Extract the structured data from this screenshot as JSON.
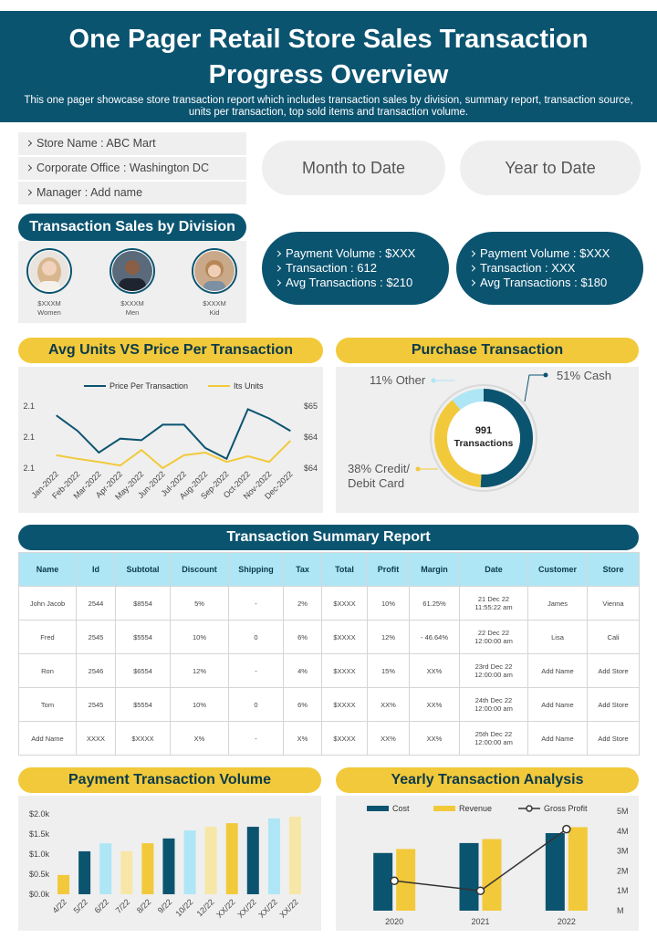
{
  "header": {
    "title": "One Pager Retail Store Sales Transaction Progress Overview",
    "subtitle": "This one pager showcase store transaction report which includes transaction sales by division, summary report, transaction source, units per transaction, top sold items and transaction volume."
  },
  "store_info": [
    "Store Name : ABC Mart",
    "Corporate  Office : Washington DC",
    "Manager : Add name"
  ],
  "periods": [
    "Month to Date",
    "Year to Date"
  ],
  "division": {
    "title": "Transaction Sales by Division",
    "people": [
      {
        "amount": "$XXXM",
        "label": "Women"
      },
      {
        "amount": "$XXXM",
        "label": "Men"
      },
      {
        "amount": "$XXXM",
        "label": "Kid"
      }
    ]
  },
  "period_stats": [
    [
      "Payment Volume : $XXX",
      "Transaction  : 612",
      "Avg Transactions  : $210"
    ],
    [
      "Payment Volume : $XXX",
      "Transaction  : XXX",
      "Avg Transactions  : $180"
    ]
  ],
  "table": {
    "title": "Transaction Summary Report",
    "columns": [
      "Name",
      "Id",
      "Subtotal",
      "Discount",
      "Shipping",
      "Tax",
      "Total",
      "Profit",
      "Margin",
      "Date",
      "Customer",
      "Store"
    ],
    "rows": [
      [
        "John Jacob",
        "2544",
        "$8554",
        "5%",
        "-",
        "2%",
        "$XXXX",
        "10%",
        "61.25%",
        "21 Dec 22\n11:55:22  am",
        "James",
        "Vienna"
      ],
      [
        "Fred",
        "2545",
        "$5554",
        "10%",
        "0",
        "6%",
        "$XXXX",
        "12%",
        "- 46.64%",
        "22 Dec 22\n12:00:00  am",
        "Lisa",
        "Cali"
      ],
      [
        "Ron",
        "2546",
        "$6554",
        "12%",
        "-",
        "4%",
        "$XXXX",
        "15%",
        "XX%",
        "23rd Dec 22\n12:00:00  am",
        "Add Name",
        "Add Store"
      ],
      [
        "Tom",
        "2545",
        "$5554",
        "10%",
        "0",
        "6%",
        "$XXXX",
        "XX%",
        "XX%",
        "24th Dec 22\n12:00:00  am",
        "Add Name",
        "Add Store"
      ],
      [
        "Add Name",
        "XXXX",
        "$XXXX",
        "X%",
        "-",
        "X%",
        "$XXXX",
        "XX%",
        "XX%",
        "25th Dec 22\n12:00:00  am",
        "Add Name",
        "Add Store"
      ]
    ]
  },
  "chart_data": [
    {
      "type": "line",
      "title": "Avg Units VS Price Per Transaction",
      "categories": [
        "Jan-2022",
        "Feb-2022",
        "Mar-2022",
        "Apr-2022",
        "May-2022",
        "Jun-2022",
        "Jul-2022",
        "Aug-2022",
        "Sep-2022",
        "Oct-2022",
        "Nov-2022",
        "Dec-2022"
      ],
      "series": [
        {
          "name": "Price Per Transaction",
          "color": "#0b5470",
          "values": [
            2.114,
            2.104,
            2.09,
            2.099,
            2.098,
            2.108,
            2.108,
            2.093,
            2.086,
            2.118,
            2.112,
            2.104
          ]
        },
        {
          "name": "Its Units",
          "color": "#f2c93a",
          "axis": "y2",
          "values": [
            63.85,
            63.78,
            63.72,
            63.65,
            63.95,
            63.6,
            63.85,
            63.9,
            63.72,
            63.83,
            63.72,
            64.13
          ]
        }
      ],
      "ylim": [
        2.08,
        2.12
      ],
      "yticks": [
        {
          "value": 2.08,
          "label": "2.1"
        },
        2.1,
        {
          "value": 2.12,
          "label": "2.1"
        }
      ],
      "y2lim": [
        63.6,
        64.8
      ],
      "y2ticks": [
        {
          "value": 63.6,
          "label": "$64"
        },
        {
          "value": 64.2,
          "label": "$64"
        },
        {
          "value": 64.8,
          "label": "$65"
        }
      ],
      "legend": "top"
    },
    {
      "type": "pie",
      "title": "Purchase Transaction",
      "categories": [
        "Cash",
        "Credit/\nDebit Card",
        "Other"
      ],
      "values": [
        51,
        38,
        11
      ],
      "value_labels": [
        "51%",
        "38%",
        "11%"
      ],
      "colors": [
        "#0b5470",
        "#f2c93a",
        "#aee6f5"
      ],
      "total": 991,
      "total_label": "Transactions"
    },
    {
      "type": "bar",
      "title": "Payment Transaction Volume",
      "categories": [
        "4/22",
        "5/22",
        "6/22",
        "7/22",
        "8/22",
        "9/22",
        "10/22",
        "12/22",
        "XX/22",
        "XX/22",
        "XX/22",
        "XX/22"
      ],
      "values": [
        480,
        1070,
        1270,
        1070,
        1270,
        1390,
        1590,
        1680,
        1770,
        1680,
        1890,
        1930
      ],
      "colors": [
        "#f2c93a",
        "#0b5470",
        "#aee6f5",
        "#f7e7a6",
        "#f2c93a",
        "#0b5470",
        "#aee6f5",
        "#f7e7a6",
        "#f2c93a",
        "#0b5470",
        "#aee6f5",
        "#f7e7a6"
      ],
      "ylim": [
        0,
        2000
      ],
      "yticks": [
        {
          "value": 0,
          "label": "$0.0k"
        },
        {
          "value": 500,
          "label": "$0.5k"
        },
        {
          "value": 1000,
          "label": "$1.0k"
        },
        {
          "value": 1500,
          "label": "$1.5k"
        },
        {
          "value": 2000,
          "label": "$2.0k"
        }
      ]
    },
    {
      "type": "combo",
      "title": "Yearly Transaction Analysis",
      "categories": [
        "2020",
        "2021",
        "2022"
      ],
      "series": [
        {
          "name": "Cost",
          "color": "#0b5470",
          "type": "bar",
          "values": [
            2900000,
            3400000,
            3900000
          ]
        },
        {
          "name": "Revenue",
          "color": "#f2c93a",
          "type": "bar",
          "values": [
            3100000,
            3600000,
            4200000
          ]
        },
        {
          "name": "Gross Profit",
          "color": "#333333",
          "type": "line",
          "values": [
            1500000,
            1000000,
            4100000
          ]
        }
      ],
      "ylim": [
        0,
        5000000
      ],
      "yticks": [
        {
          "value": 0,
          "label": "M"
        },
        {
          "value": 1000000,
          "label": "1M"
        },
        {
          "value": 2000000,
          "label": "2M"
        },
        {
          "value": 3000000,
          "label": "3M"
        },
        {
          "value": 4000000,
          "label": "4M"
        },
        {
          "value": 5000000,
          "label": "5M"
        }
      ],
      "legend": "top"
    }
  ]
}
